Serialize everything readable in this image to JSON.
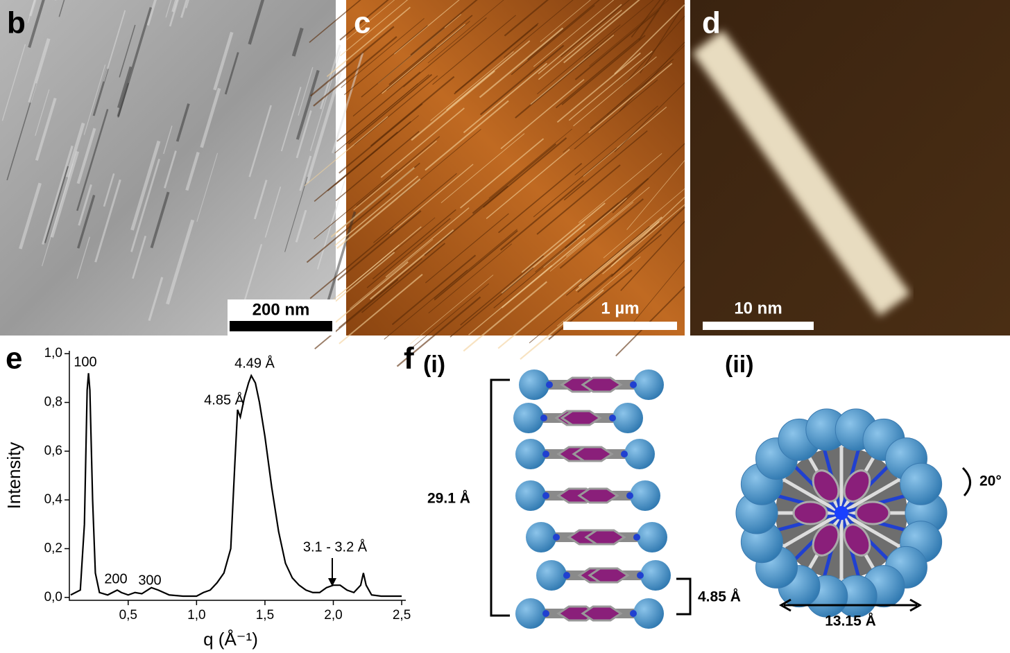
{
  "panels": {
    "b": {
      "label": "b",
      "scale_bar": "200 nm"
    },
    "c": {
      "label": "c",
      "scale_bar": "1 µm"
    },
    "d": {
      "label": "d",
      "scale_bar": "10 nm"
    },
    "f": {
      "label": "f",
      "i": {
        "label": "(i)",
        "height": "29.1 Å",
        "spacing": "4.85 Å"
      },
      "ii": {
        "label": "(ii)",
        "angle": "20°",
        "diameter": "13.15 Å"
      }
    }
  },
  "chart_data": {
    "type": "line",
    "panel_label": "e",
    "x_label": "q (Å⁻¹)",
    "y_label": "Intensity",
    "color": "#000000",
    "x": [
      0.08,
      0.15,
      0.18,
      0.2,
      0.21,
      0.22,
      0.24,
      0.26,
      0.29,
      0.35,
      0.42,
      0.45,
      0.5,
      0.55,
      0.6,
      0.67,
      0.72,
      0.8,
      0.9,
      1.0,
      1.05,
      1.1,
      1.15,
      1.2,
      1.25,
      1.28,
      1.3,
      1.32,
      1.35,
      1.38,
      1.4,
      1.43,
      1.46,
      1.5,
      1.55,
      1.6,
      1.65,
      1.7,
      1.75,
      1.8,
      1.85,
      1.9,
      1.95,
      2.0,
      2.05,
      2.1,
      2.15,
      2.2,
      2.22,
      2.24,
      2.28,
      2.35,
      2.5
    ],
    "values": [
      0.01,
      0.03,
      0.3,
      0.85,
      0.92,
      0.85,
      0.4,
      0.1,
      0.02,
      0.01,
      0.03,
      0.02,
      0.01,
      0.02,
      0.015,
      0.04,
      0.03,
      0.01,
      0.005,
      0.005,
      0.02,
      0.03,
      0.06,
      0.1,
      0.2,
      0.55,
      0.77,
      0.74,
      0.82,
      0.88,
      0.91,
      0.88,
      0.8,
      0.66,
      0.45,
      0.27,
      0.14,
      0.08,
      0.05,
      0.03,
      0.02,
      0.02,
      0.04,
      0.05,
      0.05,
      0.03,
      0.02,
      0.05,
      0.1,
      0.05,
      0.01,
      0.005,
      0.005
    ],
    "xlim": [
      0.07,
      2.53
    ],
    "ylim": [
      -0.012,
      1.012
    ],
    "xticks": [
      {
        "value": 0.5,
        "label": "0,5"
      },
      {
        "value": 1.0,
        "label": "1,0"
      },
      {
        "value": 1.5,
        "label": "1,5"
      },
      {
        "value": 2.0,
        "label": "2,0"
      },
      {
        "value": 2.5,
        "label": "2,5"
      }
    ],
    "yticks": [
      {
        "value": 0,
        "label": "0,0"
      },
      {
        "value": 0.2,
        "label": "0,2"
      },
      {
        "value": 0.4,
        "label": "0,4"
      },
      {
        "value": 0.6,
        "label": "0,6"
      },
      {
        "value": 0.8,
        "label": "0,8"
      },
      {
        "value": 1.0,
        "label": "1,0"
      }
    ],
    "annotations": [
      "100",
      "200",
      "300",
      "4.85 Å",
      "4.49 Å",
      "3.1 - 3.2 Å"
    ]
  }
}
